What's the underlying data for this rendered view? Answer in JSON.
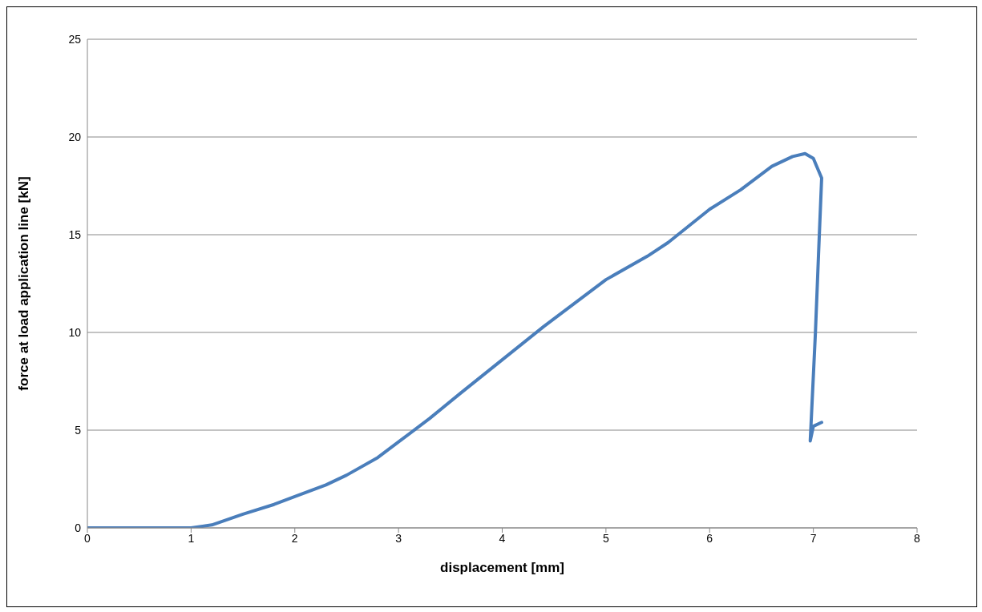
{
  "chart_data": {
    "type": "line",
    "xlabel": "displacement [mm]",
    "ylabel": "force at load application line [kN]",
    "xlim": [
      0,
      8
    ],
    "xticks": [
      0,
      1,
      2,
      3,
      4,
      5,
      6,
      7,
      8
    ],
    "ylim": [
      0,
      25
    ],
    "yticks": [
      0,
      5,
      10,
      15,
      20,
      25
    ],
    "grid": "y",
    "marker": "none",
    "line_style": "solid",
    "series": [
      {
        "color": "#4a7ebb",
        "x": [
          0,
          0.5,
          1,
          1.2,
          1.5,
          1.8,
          2,
          2.3,
          2.5,
          2.8,
          3,
          3.3,
          3.6,
          4,
          4.4,
          4.8,
          5,
          5.4,
          5.6,
          6,
          6.3,
          6.6,
          6.8,
          6.92,
          7.0,
          7.08,
          7.05,
          7.02,
          6.97,
          7.0,
          7.08
        ],
        "values": [
          0,
          0,
          0,
          0.15,
          0.7,
          1.2,
          1.6,
          2.2,
          2.7,
          3.6,
          4.4,
          5.6,
          6.9,
          8.6,
          10.3,
          11.9,
          12.7,
          13.9,
          14.6,
          16.3,
          17.3,
          18.5,
          19.0,
          19.15,
          18.9,
          17.9,
          14,
          10,
          4.45,
          5.2,
          5.4
        ]
      }
    ]
  }
}
